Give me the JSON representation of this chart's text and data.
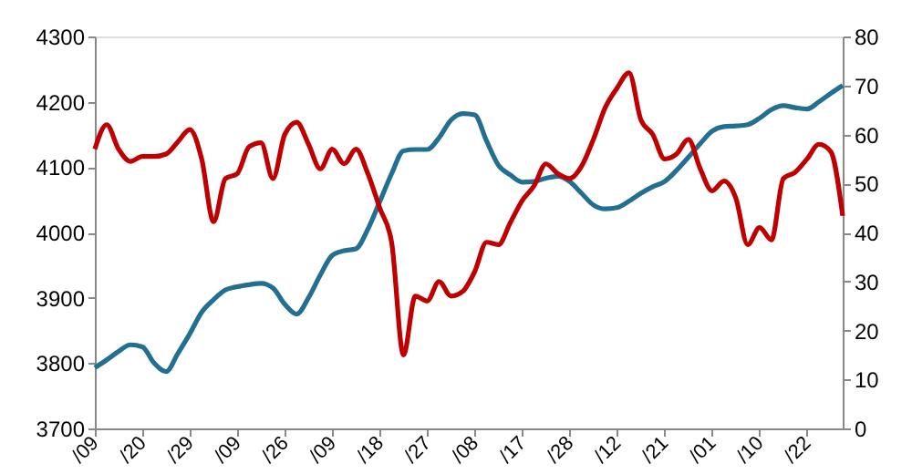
{
  "chart_data": {
    "type": "line",
    "line_style": "solid",
    "categories": [
      "/09",
      null,
      null,
      null,
      "/20",
      null,
      null,
      null,
      "/29",
      null,
      null,
      null,
      "/09",
      null,
      null,
      null,
      "/26",
      null,
      null,
      null,
      "/09",
      null,
      null,
      null,
      "/18",
      null,
      null,
      null,
      "/27",
      null,
      null,
      null,
      "/08",
      null,
      null,
      null,
      "/17",
      null,
      null,
      null,
      "/28",
      null,
      null,
      null,
      "/12",
      null,
      null,
      null,
      "/21",
      null,
      null,
      null,
      "/01",
      null,
      null,
      null,
      "/10",
      null,
      null,
      null,
      "/22",
      null,
      null,
      null
    ],
    "ylim": [
      3700,
      4300
    ],
    "yticks": [
      3700,
      3800,
      3900,
      4000,
      4100,
      4200,
      4300
    ],
    "y2lim": [
      0,
      80
    ],
    "y2ticks": [
      0,
      10,
      20,
      30,
      40,
      50,
      60,
      70,
      80
    ],
    "series": [
      {
        "color": "#236f90",
        "values": [
          3793,
          3805,
          3818,
          3828,
          3825,
          3800,
          3787,
          3815,
          3845,
          3878,
          3897,
          3912,
          3917,
          3920,
          3922,
          3915,
          3890,
          3875,
          3900,
          3935,
          3965,
          3972,
          3975,
          4005,
          4047,
          4090,
          4125,
          4127,
          4127,
          4145,
          4172,
          4182,
          4180,
          4140,
          4103,
          4088,
          4077,
          4078,
          4083,
          4086,
          4078,
          4060,
          4042,
          4036,
          4038,
          4048,
          4060,
          4070,
          4078,
          4095,
          4115,
          4136,
          4155,
          4162,
          4163,
          4165,
          4175,
          4188,
          4194,
          4191,
          4189,
          4200,
          4213,
          4225
        ]
      },
      {
        "color": "#c00000",
        "axis": "y2",
        "values": [
          57,
          62,
          57,
          54.5,
          55.5,
          55.5,
          56,
          58.5,
          61,
          55,
          42.2,
          51,
          52,
          57.5,
          58.3,
          51,
          60,
          62.5,
          58,
          53,
          57,
          54,
          57,
          52,
          45,
          38,
          15,
          27,
          26,
          30,
          27,
          28,
          32,
          38,
          37.5,
          42,
          46.5,
          49.5,
          54,
          52,
          51,
          53.5,
          59,
          65.5,
          69.5,
          72.6,
          63,
          60,
          55,
          56,
          59,
          53,
          48.5,
          50.5,
          47,
          37.5,
          41,
          38.5,
          51,
          52.3,
          55,
          58,
          56.5,
          43.4
        ]
      }
    ]
  }
}
